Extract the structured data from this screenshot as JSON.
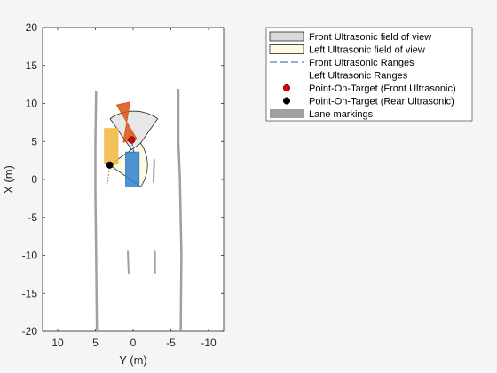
{
  "chart_data": {
    "type": "scatter",
    "xlabel": "Y (m)",
    "ylabel": "X (m)",
    "xlim": [
      12,
      -12
    ],
    "ylim": [
      -20,
      20
    ],
    "x_ticks": [
      10,
      5,
      0,
      -5,
      -10
    ],
    "y_ticks": [
      -20,
      -15,
      -10,
      -5,
      0,
      5,
      10,
      15,
      20
    ],
    "x_tick_labels": [
      "10",
      "5",
      "0",
      "-5",
      "-10"
    ],
    "y_tick_labels": [
      "-20",
      "-15",
      "-10",
      "-5",
      "0",
      "5",
      "10",
      "15",
      "20"
    ],
    "grid": false,
    "legend_position": "outside-top-right",
    "legend": [
      {
        "label": "Front Ultrasonic field of view",
        "symbol": "patch",
        "color": "#d9d9d9"
      },
      {
        "label": "Left Ultrasonic field of view",
        "symbol": "patch",
        "color": "#fffbe0"
      },
      {
        "label": "Front Ultrasonic Ranges",
        "symbol": "dashed-line",
        "color": "#1f5fa8"
      },
      {
        "label": "Left Ultrasonic Ranges",
        "symbol": "dotted-line",
        "color": "#d95319"
      },
      {
        "label": "Point-On-Target (Front Ultrasonic)",
        "symbol": "marker",
        "color": "#e00000"
      },
      {
        "label": "Point-On-Target (Rear Ultrasonic)",
        "symbol": "marker",
        "color": "#000000"
      },
      {
        "label": "Lane markings",
        "symbol": "thick-line",
        "color": "#a0a0a0"
      }
    ],
    "lanes": [
      {
        "name": "left-lane-marking",
        "points": [
          [
            4.8,
            -20
          ],
          [
            4.9,
            -10
          ],
          [
            5.0,
            -2
          ],
          [
            5.0,
            5
          ],
          [
            4.9,
            11.5
          ]
        ]
      },
      {
        "name": "right-lane-marking",
        "points": [
          [
            -6.3,
            -20
          ],
          [
            -6.4,
            -10
          ],
          [
            -6.2,
            0
          ],
          [
            -6.0,
            5
          ],
          [
            -6.0,
            11.8
          ]
        ]
      }
    ],
    "lane_dashes": [
      {
        "from": [
          -2.7,
          -0.3
        ],
        "to": [
          -2.8,
          2.6
        ]
      },
      {
        "from": [
          0.6,
          -12.3
        ],
        "to": [
          0.7,
          -9.5
        ]
      },
      {
        "from": [
          -2.9,
          -12.3
        ],
        "to": [
          -2.9,
          -9.5
        ]
      }
    ],
    "vehicles": [
      {
        "name": "ego-vehicle",
        "color": "#2f7fcf",
        "corners": [
          [
            1.0,
            -1.0
          ],
          [
            -0.8,
            -1.0
          ],
          [
            -0.8,
            3.6
          ],
          [
            1.0,
            3.6
          ]
        ]
      },
      {
        "name": "left-target-vehicle",
        "color": "#f0b73d",
        "corners": [
          [
            3.8,
            2.0
          ],
          [
            2.0,
            2.0
          ],
          [
            2.0,
            6.7
          ],
          [
            3.8,
            6.7
          ]
        ]
      },
      {
        "name": "front-target-vehicle",
        "color": "#d95319",
        "corners": [
          [
            2.2,
            9.8
          ],
          [
            0.4,
            10.2
          ],
          [
            1.3,
            4.9
          ],
          [
            -0.5,
            5.3
          ]
        ]
      }
    ],
    "fov": [
      {
        "name": "front-ultrasonic-fov",
        "apex": [
          -0.1,
          3.5
        ],
        "radius": 5.5,
        "angle_from_deg": 55,
        "angle_to_deg": 125,
        "fill": "#e6e6e6"
      },
      {
        "name": "left-ultrasonic-fov",
        "apex": [
          3.1,
          1.9
        ],
        "radius": 5.0,
        "angle_from_deg": 145,
        "angle_to_deg": 215,
        "fill": "#fffbe0"
      }
    ],
    "ranges": [
      {
        "name": "front-ultrasonic-range",
        "from": [
          -0.1,
          3.5
        ],
        "to": [
          0.2,
          5.2
        ],
        "style": "dashed",
        "color": "#1f5fa8"
      },
      {
        "name": "left-ultrasonic-range",
        "from": [
          3.1,
          1.9
        ],
        "to": [
          3.4,
          -0.6
        ],
        "style": "dotted",
        "color": "#d95319"
      }
    ],
    "points": [
      {
        "name": "front-point-on-target",
        "y": 0.2,
        "x": 5.2,
        "color": "#e00000"
      },
      {
        "name": "rear-point-on-target",
        "y": 3.1,
        "x": 1.9,
        "color": "#000000"
      }
    ]
  }
}
